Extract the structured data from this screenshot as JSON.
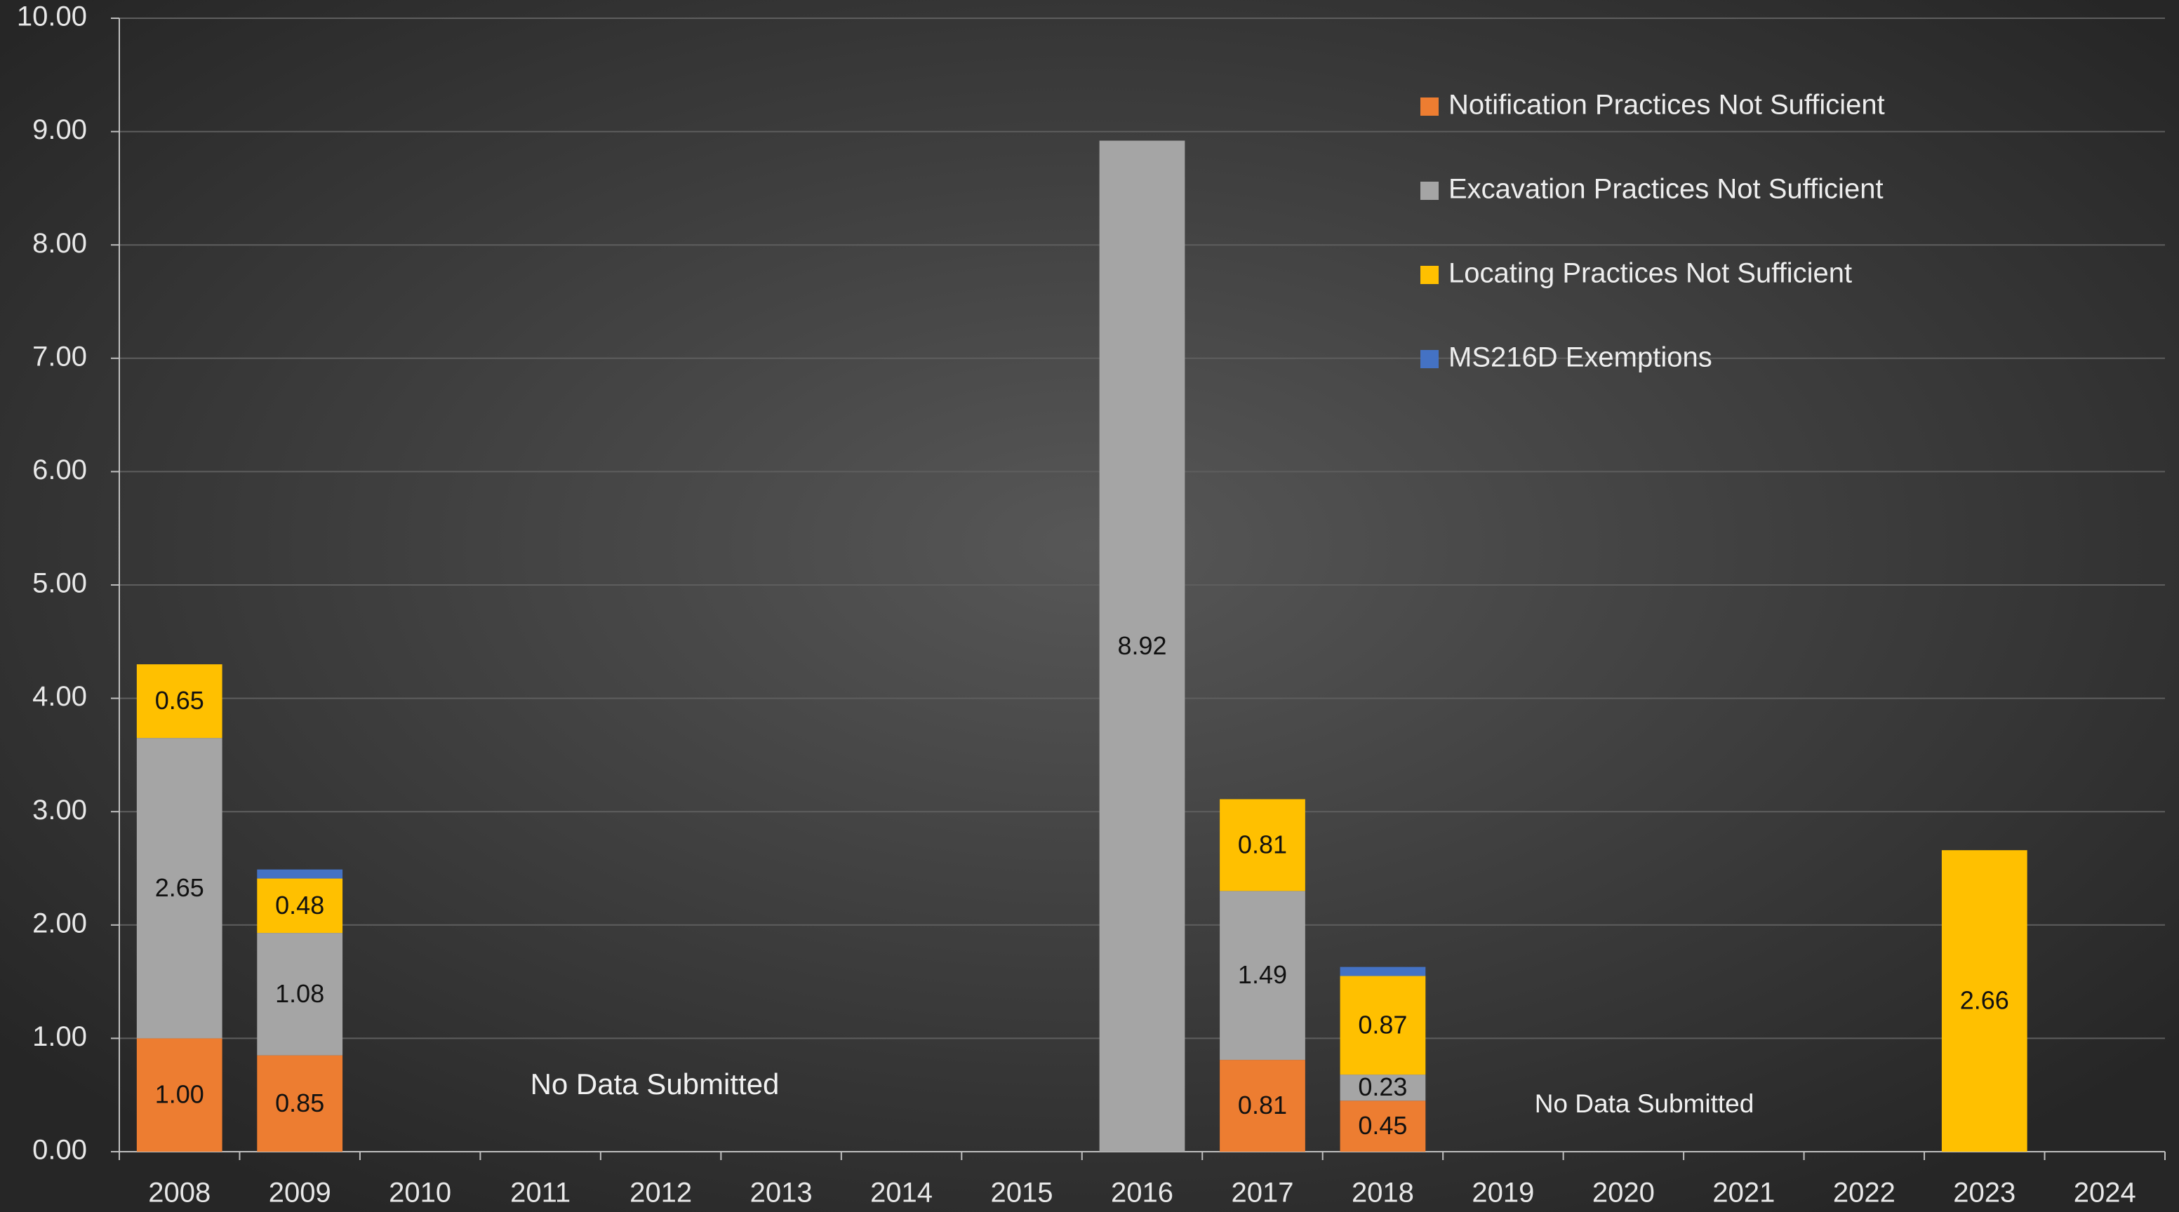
{
  "chart_data": {
    "type": "bar",
    "stacked": true,
    "categories": [
      "2008",
      "2009",
      "2010",
      "2011",
      "2012",
      "2013",
      "2014",
      "2015",
      "2016",
      "2017",
      "2018",
      "2019",
      "2020",
      "2021",
      "2022",
      "2023",
      "2024"
    ],
    "series": [
      {
        "name": "Notification Practices Not Sufficient",
        "color": "#ED7D31",
        "values": [
          1.0,
          0.85,
          null,
          null,
          null,
          null,
          null,
          null,
          null,
          0.81,
          0.45,
          null,
          null,
          null,
          null,
          null,
          null
        ],
        "value_labels": [
          "1.00",
          "0.85",
          null,
          null,
          null,
          null,
          null,
          null,
          null,
          "0.81",
          "0.45",
          null,
          null,
          null,
          null,
          null,
          null
        ]
      },
      {
        "name": "Excavation Practices Not Sufficient",
        "color": "#A5A5A5",
        "values": [
          2.65,
          1.08,
          null,
          null,
          null,
          null,
          null,
          null,
          8.92,
          1.49,
          0.23,
          null,
          null,
          null,
          null,
          null,
          null
        ],
        "value_labels": [
          "2.65",
          "1.08",
          null,
          null,
          null,
          null,
          null,
          null,
          "8.92",
          "1.49",
          "0.23",
          null,
          null,
          null,
          null,
          null,
          null
        ]
      },
      {
        "name": "Locating Practices Not Sufficient",
        "color": "#FFC000",
        "values": [
          0.65,
          0.48,
          null,
          null,
          null,
          null,
          null,
          null,
          null,
          0.81,
          0.87,
          null,
          null,
          null,
          null,
          2.66,
          null
        ],
        "value_labels": [
          "0.65",
          "0.48",
          null,
          null,
          null,
          null,
          null,
          null,
          null,
          "0.81",
          "0.87",
          null,
          null,
          null,
          null,
          "2.66",
          null
        ]
      },
      {
        "name": "MS216D Exemptions",
        "color": "#4472C4",
        "values": [
          null,
          0.08,
          null,
          null,
          null,
          null,
          null,
          null,
          null,
          null,
          0.08,
          null,
          null,
          null,
          null,
          null,
          null
        ]
      }
    ],
    "ylim": [
      0,
      10
    ],
    "yticks": [
      {
        "value": 0,
        "label": "0.00"
      },
      {
        "value": 1,
        "label": "1.00"
      },
      {
        "value": 2,
        "label": "2.00"
      },
      {
        "value": 3,
        "label": "3.00"
      },
      {
        "value": 4,
        "label": "4.00"
      },
      {
        "value": 5,
        "label": "5.00"
      },
      {
        "value": 6,
        "label": "6.00"
      },
      {
        "value": 7,
        "label": "7.00"
      },
      {
        "value": 8,
        "label": "8.00"
      },
      {
        "value": 9,
        "label": "9.00"
      },
      {
        "value": 10,
        "label": "10.00"
      }
    ],
    "grid": true,
    "legend": "upper right",
    "annotations": [
      "No Data Submitted",
      "No Data Submitted"
    ]
  }
}
